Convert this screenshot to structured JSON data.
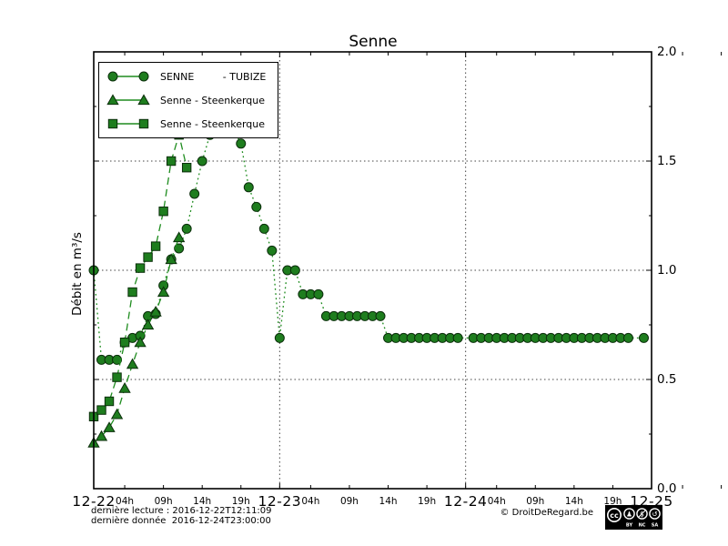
{
  "title": "Senne",
  "y_axis": {
    "label": "Débit en m³/s",
    "tick_labels": [
      "2.0",
      "1.5",
      "1.0",
      "0.5",
      "0.0"
    ],
    "tick_values": [
      2.0,
      1.5,
      1.0,
      0.5,
      0.0
    ]
  },
  "x_axis": {
    "day_labels": [
      "12-22",
      "12-23",
      "12-24",
      "12-25"
    ],
    "hour_labels": [
      "04h",
      "09h",
      "14h",
      "19h"
    ],
    "hour_offsets": [
      4,
      9,
      14,
      19
    ]
  },
  "legend": {
    "entries": [
      {
        "label": "SENNE         - TUBIZE",
        "marker": "circle"
      },
      {
        "label": "Senne - Steenkerque",
        "marker": "triangle"
      },
      {
        "label": "Senne - Steenkerque",
        "marker": "square"
      }
    ]
  },
  "footer": {
    "line1": "dernière lecture : 2016-12-22T12:11:09",
    "line2": "dernière donnée  2016-12-24T23:00:00",
    "copyright": "© DroitDeRegard.be",
    "cc_badge": {
      "logo": "cc",
      "labels": [
        "BY",
        "NC",
        "SA"
      ]
    }
  },
  "colors": {
    "series_fill": "#1e7d1e",
    "series_line": "#1e8c1e",
    "marker_edge": "#0b2e0b",
    "grid": "#444444",
    "frame": "#000000"
  },
  "chart_data": {
    "type": "line",
    "title": "Senne",
    "ylabel": "Débit en m³/s",
    "ylim": [
      0.0,
      2.0
    ],
    "x_unit": "hours since 2016-12-22T00:00",
    "xlim": [
      0,
      72
    ],
    "grid": {
      "y_values": [
        0.5,
        1.0,
        1.5
      ],
      "x_hours": [
        24,
        48
      ],
      "style": "dotted"
    },
    "legend_position": "upper left",
    "series": [
      {
        "name": "SENNE - TUBIZE",
        "marker": "circle",
        "linestyle": "dotted",
        "missing_marker_hours": [
          48,
          70
        ],
        "points": [
          [
            0,
            1.0
          ],
          [
            1,
            0.59
          ],
          [
            2,
            0.59
          ],
          [
            3,
            0.59
          ],
          [
            4,
            0.67
          ],
          [
            5,
            0.69
          ],
          [
            6,
            0.7
          ],
          [
            7,
            0.79
          ],
          [
            8,
            0.8
          ],
          [
            9,
            0.93
          ],
          [
            10,
            1.05
          ],
          [
            11,
            1.1
          ],
          [
            12,
            1.19
          ],
          [
            13,
            1.35
          ],
          [
            14,
            1.5
          ],
          [
            15,
            1.62
          ],
          [
            16,
            1.68
          ],
          [
            17,
            1.7
          ],
          [
            18,
            1.65
          ],
          [
            19,
            1.58
          ],
          [
            20,
            1.38
          ],
          [
            21,
            1.29
          ],
          [
            22,
            1.19
          ],
          [
            23,
            1.09
          ],
          [
            24,
            0.69
          ],
          [
            25,
            1.0
          ],
          [
            26,
            1.0
          ],
          [
            27,
            0.89
          ],
          [
            28,
            0.89
          ],
          [
            29,
            0.89
          ],
          [
            30,
            0.79
          ],
          [
            31,
            0.79
          ],
          [
            32,
            0.79
          ],
          [
            33,
            0.79
          ],
          [
            34,
            0.79
          ],
          [
            35,
            0.79
          ],
          [
            36,
            0.79
          ],
          [
            37,
            0.79
          ],
          [
            38,
            0.69
          ],
          [
            39,
            0.69
          ],
          [
            40,
            0.69
          ],
          [
            41,
            0.69
          ],
          [
            42,
            0.69
          ],
          [
            43,
            0.69
          ],
          [
            44,
            0.69
          ],
          [
            45,
            0.69
          ],
          [
            46,
            0.69
          ],
          [
            47,
            0.69
          ],
          [
            48,
            0.69
          ],
          [
            49,
            0.69
          ],
          [
            50,
            0.69
          ],
          [
            51,
            0.69
          ],
          [
            52,
            0.69
          ],
          [
            53,
            0.69
          ],
          [
            54,
            0.69
          ],
          [
            55,
            0.69
          ],
          [
            56,
            0.69
          ],
          [
            57,
            0.69
          ],
          [
            58,
            0.69
          ],
          [
            59,
            0.69
          ],
          [
            60,
            0.69
          ],
          [
            61,
            0.69
          ],
          [
            62,
            0.69
          ],
          [
            63,
            0.69
          ],
          [
            64,
            0.69
          ],
          [
            65,
            0.69
          ],
          [
            66,
            0.69
          ],
          [
            67,
            0.69
          ],
          [
            68,
            0.69
          ],
          [
            69,
            0.69
          ],
          [
            70,
            0.69
          ],
          [
            71,
            0.69
          ]
        ]
      },
      {
        "name": "Senne - Steenkerque",
        "marker": "triangle",
        "linestyle": "dashed",
        "missing_marker_hours": [],
        "points": [
          [
            0,
            0.21
          ],
          [
            1,
            0.24
          ],
          [
            2,
            0.28
          ],
          [
            3,
            0.34
          ],
          [
            4,
            0.46
          ],
          [
            5,
            0.57
          ],
          [
            6,
            0.67
          ],
          [
            7,
            0.75
          ],
          [
            8,
            0.81
          ],
          [
            9,
            0.9
          ],
          [
            10,
            1.05
          ],
          [
            11,
            1.15
          ]
        ]
      },
      {
        "name": "Senne - Steenkerque",
        "marker": "square",
        "linestyle": "dashed",
        "missing_marker_hours": [],
        "points": [
          [
            0,
            0.33
          ],
          [
            1,
            0.36
          ],
          [
            2,
            0.4
          ],
          [
            3,
            0.51
          ],
          [
            4,
            0.67
          ],
          [
            5,
            0.9
          ],
          [
            6,
            1.01
          ],
          [
            7,
            1.06
          ],
          [
            8,
            1.11
          ],
          [
            9,
            1.27
          ],
          [
            10,
            1.5
          ],
          [
            11,
            1.62
          ],
          [
            12,
            1.47
          ]
        ]
      }
    ]
  }
}
